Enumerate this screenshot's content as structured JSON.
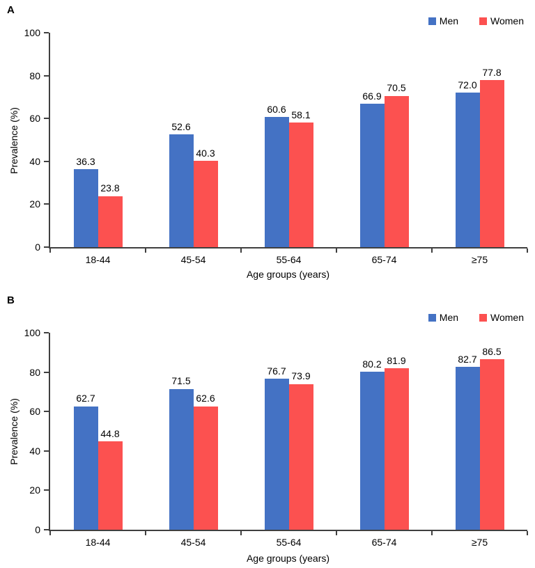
{
  "colors": {
    "men": "#4472C4",
    "women": "#FC5150",
    "axis": "#3F3F3F",
    "text": "#000000",
    "background": "#FFFFFF"
  },
  "chart_data": [
    {
      "type": "bar",
      "panel_label": "A",
      "categories": [
        "18-44",
        "45-54",
        "55-64",
        "65-74",
        "≥75"
      ],
      "series": [
        {
          "name": "Men",
          "color": "#4472C4",
          "values": [
            36.3,
            52.6,
            60.6,
            66.9,
            72.0
          ]
        },
        {
          "name": "Women",
          "color": "#FC5150",
          "values": [
            23.8,
            40.3,
            58.1,
            70.5,
            77.8
          ]
        }
      ],
      "xlabel": "Age groups (years)",
      "ylabel": "Prevalence (%)",
      "ylim": [
        0,
        100
      ],
      "yticks": [
        0,
        20,
        40,
        60,
        80,
        100
      ],
      "value_label_decimals": 1,
      "legend_position": "top-right",
      "grid": false
    },
    {
      "type": "bar",
      "panel_label": "B",
      "categories": [
        "18-44",
        "45-54",
        "55-64",
        "65-74",
        "≥75"
      ],
      "series": [
        {
          "name": "Men",
          "color": "#4472C4",
          "values": [
            62.7,
            71.5,
            76.7,
            80.2,
            82.7
          ]
        },
        {
          "name": "Women",
          "color": "#FC5150",
          "values": [
            44.8,
            62.6,
            73.9,
            81.9,
            86.5
          ]
        }
      ],
      "xlabel": "Age groups (years)",
      "ylabel": "Prevalence (%)",
      "ylim": [
        0,
        100
      ],
      "yticks": [
        0,
        20,
        40,
        60,
        80,
        100
      ],
      "value_label_decimals": 1,
      "legend_position": "top-right",
      "grid": false
    }
  ]
}
